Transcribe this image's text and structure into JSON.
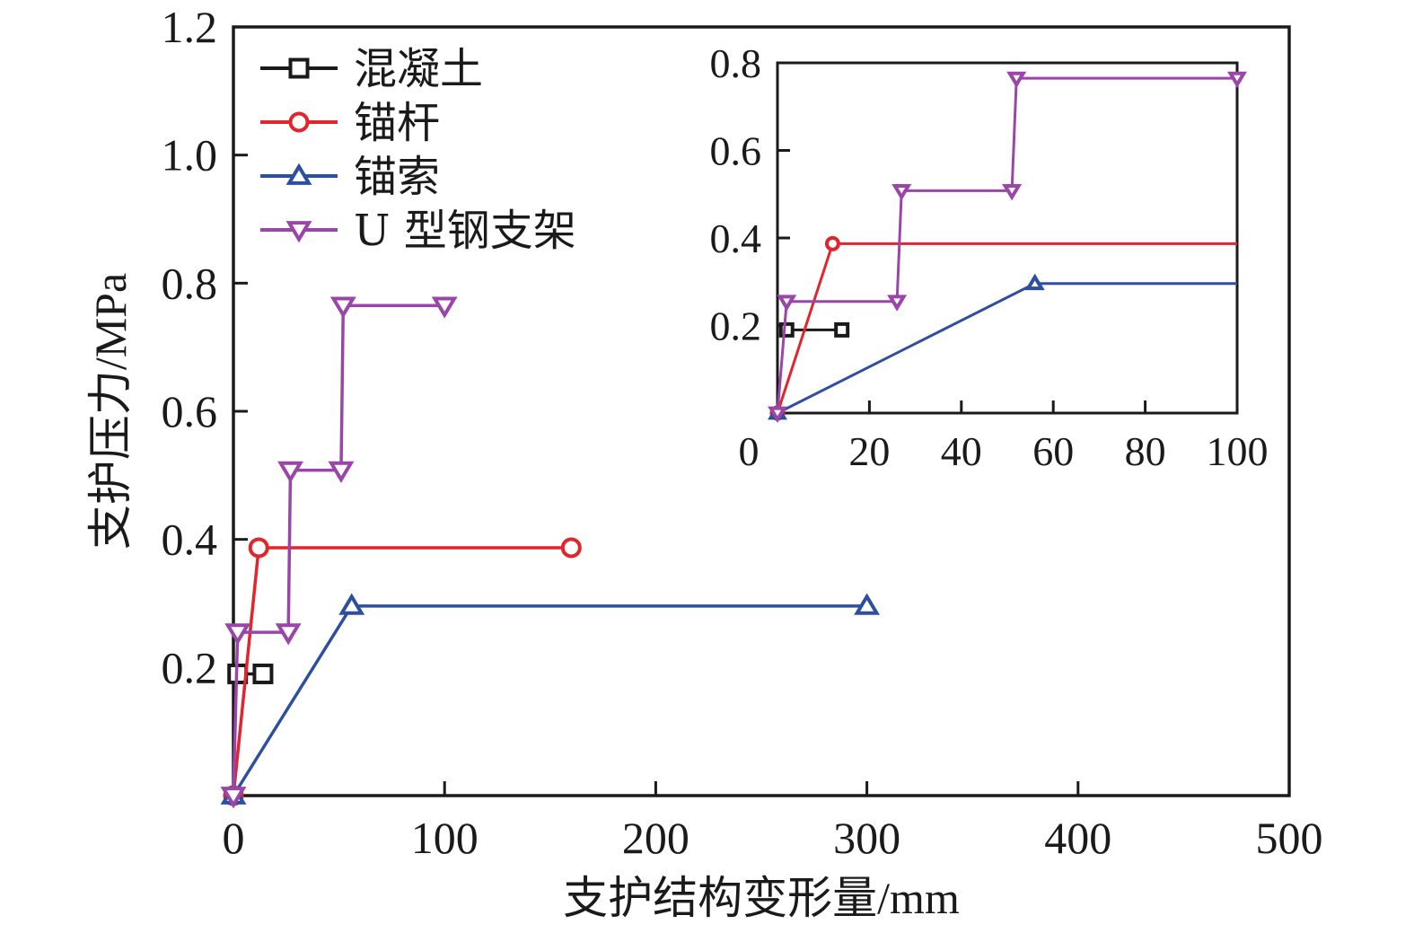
{
  "chart_data": {
    "type": "line",
    "title": "",
    "xlabel": "支护结构变形量/mm",
    "ylabel": "支护压力/MPa",
    "xlim": [
      0,
      500
    ],
    "ylim": [
      0,
      1.2
    ],
    "xticks": [
      "0",
      "100",
      "200",
      "300",
      "400",
      "500"
    ],
    "xtick_values": [
      0,
      100,
      200,
      300,
      400,
      500
    ],
    "yticks": [
      "0.2",
      "0.4",
      "0.6",
      "0.8",
      "1.0",
      "1.2"
    ],
    "ytick_values": [
      0.2,
      0.4,
      0.6,
      0.8,
      1.0,
      1.2
    ],
    "grid": false,
    "legend_position": "top-left",
    "series": [
      {
        "name": "混凝土",
        "color": "#1a1a1a",
        "marker": "square",
        "x": [
          2,
          14
        ],
        "y": [
          0.19,
          0.19
        ]
      },
      {
        "name": "锚杆",
        "color": "#e3242b",
        "marker": "circle",
        "x": [
          0,
          12,
          160
        ],
        "y": [
          0,
          0.387,
          0.387
        ]
      },
      {
        "name": "锚索",
        "color": "#2e4ea0",
        "marker": "triangle-up",
        "x": [
          0,
          56,
          300
        ],
        "y": [
          0,
          0.296,
          0.296
        ]
      },
      {
        "name": "U 型钢支架",
        "color": "#9a45a8",
        "marker": "triangle-down",
        "x": [
          0,
          2,
          26,
          27,
          51,
          52,
          100
        ],
        "y": [
          0,
          0.255,
          0.255,
          0.508,
          0.508,
          0.765,
          0.765
        ]
      }
    ],
    "inset": {
      "xlim": [
        0,
        100
      ],
      "ylim": [
        0,
        0.8
      ],
      "xticks": [
        "0",
        "20",
        "40",
        "60",
        "80",
        "100"
      ],
      "xtick_values": [
        0,
        20,
        40,
        60,
        80,
        100
      ],
      "yticks": [
        "0.2",
        "0.4",
        "0.6",
        "0.8"
      ],
      "ytick_values": [
        0.2,
        0.4,
        0.6,
        0.8
      ],
      "description": "zoomed view of deformation 0–100 mm"
    }
  }
}
